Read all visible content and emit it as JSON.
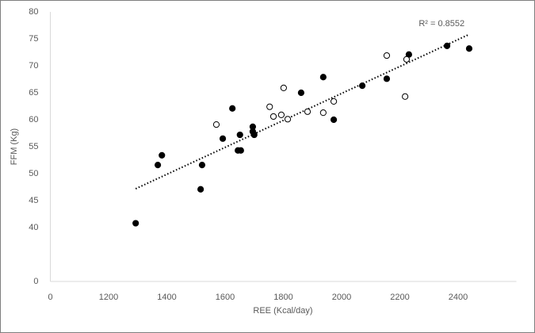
{
  "chart_data": {
    "type": "scatter",
    "x_label": "REE (Kcal/day)",
    "y_label": "FFM (Kg)",
    "annotation": "R² = 0.8552",
    "xlim": [
      1000,
      2600
    ],
    "xticks": [
      {
        "value": 1000,
        "label": "0"
      },
      1200,
      1400,
      1600,
      1800,
      2000,
      2200,
      2400
    ],
    "ylim": [
      30,
      80
    ],
    "yticks": [
      {
        "value": 30,
        "label": "0"
      },
      40,
      45,
      50,
      55,
      60,
      65,
      70,
      75,
      80
    ],
    "grid": false,
    "series": [
      {
        "color": "#000000",
        "marker": "filled",
        "x": [
          1293,
          1369,
          1383,
          1516,
          1521,
          1592,
          1625,
          1644,
          1654,
          1651,
          1695,
          1695,
          1700,
          1861,
          1937,
          1973,
          2071,
          2155,
          2231,
          2362,
          2438
        ],
        "values": [
          40.8,
          51.6,
          53.4,
          47.1,
          51.6,
          56.5,
          62.1,
          54.3,
          54.3,
          57.2,
          58.7,
          57.8,
          57.2,
          65.0,
          67.9,
          60.0,
          66.3,
          67.6,
          72.1,
          73.7,
          73.2
        ]
      },
      {
        "color": "#000000",
        "marker": "open",
        "x": [
          1570,
          1753,
          1766,
          1793,
          1801,
          1815,
          1883,
          1937,
          1973,
          2155,
          2223,
          2218
        ],
        "values": [
          59.1,
          62.4,
          60.6,
          60.9,
          65.9,
          60.1,
          61.5,
          61.3,
          63.4,
          71.9,
          71.2,
          64.3
        ]
      }
    ],
    "trendline": {
      "x": [
        1293,
        2433
      ],
      "y": [
        47.2,
        75.7
      ],
      "color": "#000000"
    }
  }
}
